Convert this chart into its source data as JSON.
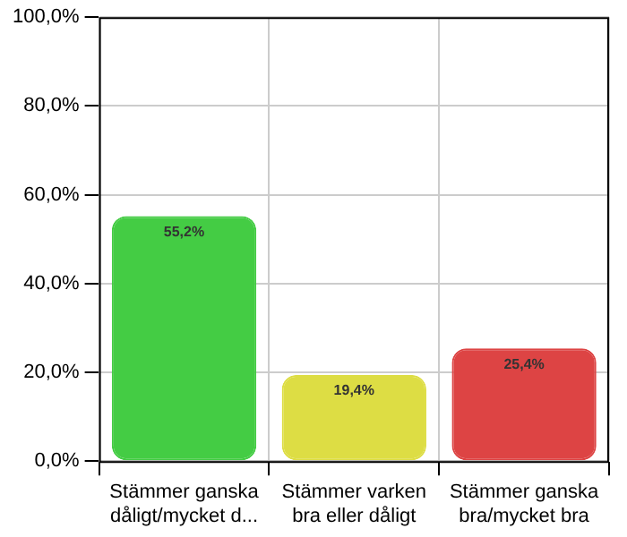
{
  "chart_data": {
    "type": "bar",
    "categories": [
      "Stämmer ganska dåligt/mycket d...",
      "Stämmer varken bra eller dåligt",
      "Stämmer ganska bra/mycket bra"
    ],
    "values": [
      55.2,
      19.4,
      25.4
    ],
    "colors": [
      "#44cc44",
      "#dddd44",
      "#dd4444"
    ],
    "value_labels": [
      "55,2%",
      "19,4%",
      "25,4%"
    ],
    "ylim": [
      0,
      100
    ],
    "yticks": [
      {
        "value": 0,
        "label": "0,0%"
      },
      {
        "value": 20,
        "label": "20,0%"
      },
      {
        "value": 40,
        "label": "40,0%"
      },
      {
        "value": 60,
        "label": "60,0%"
      },
      {
        "value": 80,
        "label": "80,0%"
      },
      {
        "value": 100,
        "label": "100,0%"
      }
    ],
    "grid": true
  }
}
